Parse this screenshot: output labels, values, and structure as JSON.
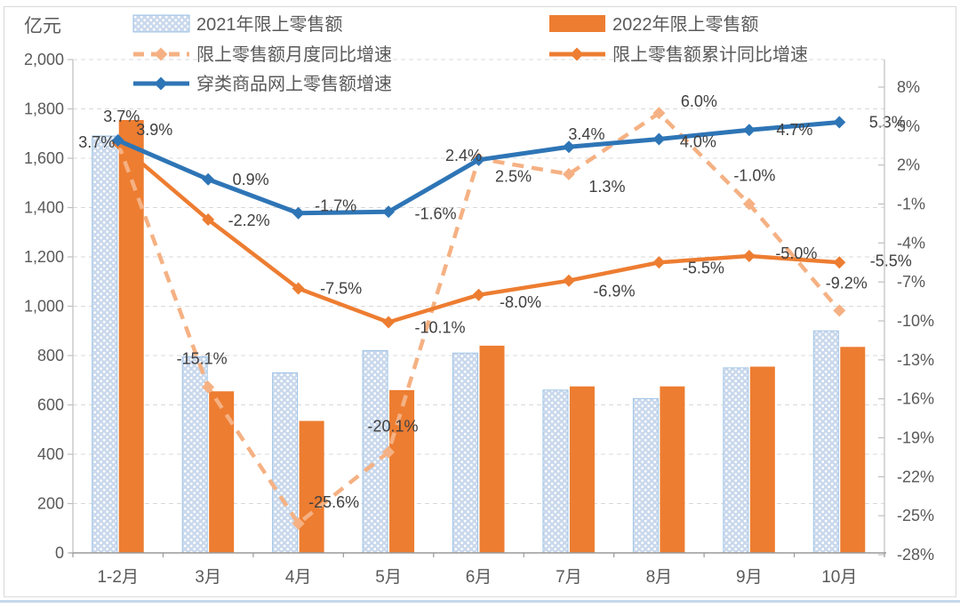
{
  "frame": {
    "background": "#FFFFFF",
    "border_color": "#D9D9D9",
    "bottom_strip_color": "#C5D8EC"
  },
  "chart_data": {
    "type": "combo-bar-line",
    "unit_label": "亿元",
    "categories": [
      "1-2月",
      "3月",
      "4月",
      "5月",
      "6月",
      "7月",
      "8月",
      "9月",
      "10月"
    ],
    "left_axis": {
      "min": 0,
      "max": 2000,
      "step": 200,
      "tick_labels": [
        "0",
        "200",
        "400",
        "600",
        "800",
        "1,000",
        "1,200",
        "1,400",
        "1,600",
        "1,800",
        "2,000"
      ]
    },
    "right_axis": {
      "min": -28,
      "max": 8,
      "step": 3,
      "tick_labels": [
        "8%",
        "5%",
        "2%",
        "-1%",
        "-4%",
        "-7%",
        "-10%",
        "-13%",
        "-16%",
        "-19%",
        "-22%",
        "-25%",
        "-28%"
      ]
    },
    "bar_series": [
      {
        "name": "2021年限上零售额",
        "style": "hatched",
        "colors": {
          "bg": "#C9D8EC",
          "dot": "#FFFFFF",
          "border": "#9DC3E6"
        },
        "values": [
          1690,
          795,
          730,
          820,
          810,
          660,
          625,
          750,
          900
        ]
      },
      {
        "name": "2022年限上零售额",
        "style": "solid",
        "colors": {
          "fill": "#ED7D31"
        },
        "values": [
          1755,
          655,
          535,
          660,
          840,
          675,
          675,
          755,
          835
        ]
      }
    ],
    "line_series": [
      {
        "name": "限上零售额月度同比增速",
        "color": "#F5B183",
        "dash": true,
        "values": [
          3.7,
          -15.1,
          -25.6,
          -20.1,
          2.5,
          1.3,
          6.0,
          -1.0,
          -9.2
        ],
        "point_labels": [
          "3.7%",
          "-15.1%",
          "-25.6%",
          "-20.1%",
          "2.5%",
          "1.3%",
          "6.0%",
          "-1.0%",
          "-9.2%"
        ]
      },
      {
        "name": "限上零售额累计同比增速",
        "color": "#ED7D31",
        "dash": false,
        "values": [
          3.7,
          -2.2,
          -7.5,
          -10.1,
          -8.0,
          -6.9,
          -5.5,
          -5.0,
          -5.5
        ],
        "point_labels": [
          "3.7%",
          "-2.2%",
          "-7.5%",
          "-10.1%",
          "-8.0%",
          "-6.9%",
          "-5.5%",
          "-5.0%",
          "-5.5%"
        ]
      },
      {
        "name": "穿类商品网上零售额增速",
        "color": "#2E75B6",
        "dash": false,
        "values": [
          3.9,
          0.9,
          -1.7,
          -1.6,
          2.4,
          3.4,
          4.0,
          4.7,
          5.3
        ],
        "point_labels": [
          "3.9%",
          "0.9%",
          "-1.7%",
          "-1.6%",
          "2.4%",
          "3.4%",
          "4.0%",
          "4.7%",
          "5.3%"
        ]
      }
    ],
    "grid": true,
    "legend_position": "top",
    "text_colors": {
      "ticks": "#595959",
      "data_labels": "#404040",
      "legend": "#595959"
    }
  }
}
